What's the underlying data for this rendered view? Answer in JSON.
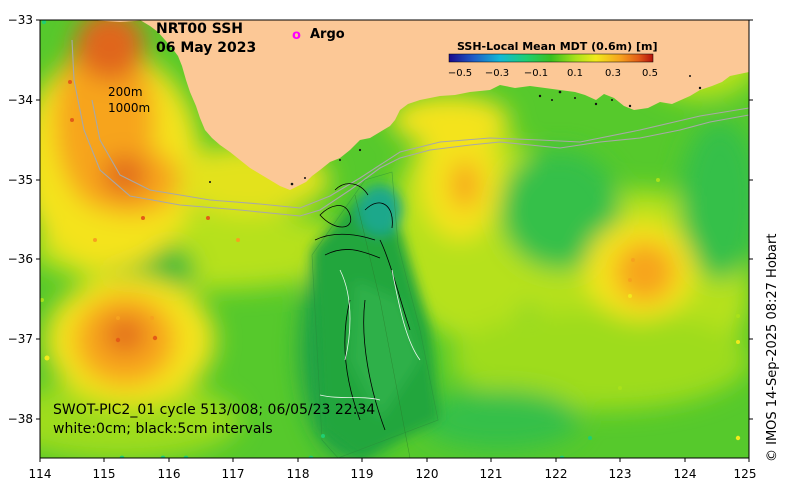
{
  "map": {
    "title_line1": "NRT00 SSH",
    "title_line2": "06 May 2023",
    "argo_marker": "o",
    "argo_label": "Argo",
    "contour_label_200": "200m",
    "contour_label_1000": "1000m",
    "colorbar_title": "SSH-Local Mean MDT (0.6m) [m]",
    "colorbar_ticks": [
      "−0.5",
      "−0.3",
      "−0.1",
      "0.1",
      "0.3",
      "0.5"
    ],
    "colorbar_colors": [
      "#1a0a8c",
      "#1f5cc7",
      "#12b9d6",
      "#1fcf72",
      "#39c01f",
      "#a8e21a",
      "#f2ea1c",
      "#f6a21e",
      "#e35b17",
      "#b3120c"
    ],
    "annotation_line1": "SWOT-PIC2_01 cycle 513/008; 06/05/23 22:34",
    "annotation_line2": "white:0cm; black:5cm intervals",
    "credit": "© IMOS 14-Sep-2025 08:27 Hobart",
    "x_ticks": [
      "114",
      "115",
      "116",
      "117",
      "118",
      "119",
      "120",
      "121",
      "122",
      "123",
      "124",
      "125"
    ],
    "y_ticks": [
      "−33",
      "−34",
      "−35",
      "−36",
      "−37",
      "−38"
    ],
    "colors": {
      "land": "#fcc896",
      "ocean_base": "#55cc2c",
      "argo": "#ff00ff"
    }
  }
}
